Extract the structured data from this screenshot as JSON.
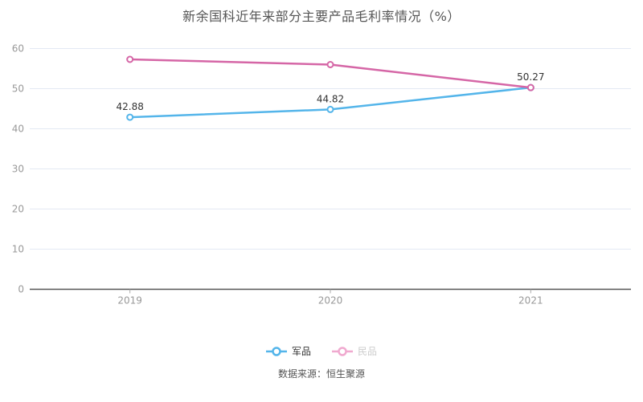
{
  "title": "新余国科近年来部分主要产品毛利率情况（%）",
  "source_note": "数据来源：恒生聚源",
  "colors": {
    "series_military": "#54b5ea",
    "series_civilian": "#d566a6",
    "legend_civilian_icon": "#f0a9cf",
    "grid_line": "#e3e9f3",
    "axis_line": "#555555",
    "axis_label": "#999999",
    "data_label": "#333333",
    "background": "#ffffff"
  },
  "legend": [
    {
      "label": "军品",
      "icon": "line-circle-icon",
      "icon_color": "#54b5ea",
      "text_color": "#333333"
    },
    {
      "label": "民品",
      "icon": "line-circle-icon",
      "icon_color": "#f0a9cf",
      "text_color": "#cccccc"
    }
  ],
  "chart_data": {
    "type": "line",
    "title": "新余国科近年来部分主要产品毛利率情况（%）",
    "categories": [
      "2019",
      "2020",
      "2021"
    ],
    "series": [
      {
        "name": "军品",
        "color": "#54b5ea",
        "values": [
          42.88,
          44.82,
          50.27
        ],
        "labels": [
          "42.88",
          "44.82",
          "50.27"
        ],
        "marker": "hollow-circle"
      },
      {
        "name": "民品",
        "color": "#d566a6",
        "values": [
          57.3,
          56.0,
          50.27
        ],
        "labels": [
          null,
          null,
          null
        ],
        "marker": "hollow-circle"
      }
    ],
    "xlabel": "",
    "ylabel": "",
    "ylim": [
      0,
      60
    ],
    "yticks": [
      0,
      10,
      20,
      30,
      40,
      50,
      60
    ],
    "grid": true,
    "legend_position": "bottom"
  }
}
